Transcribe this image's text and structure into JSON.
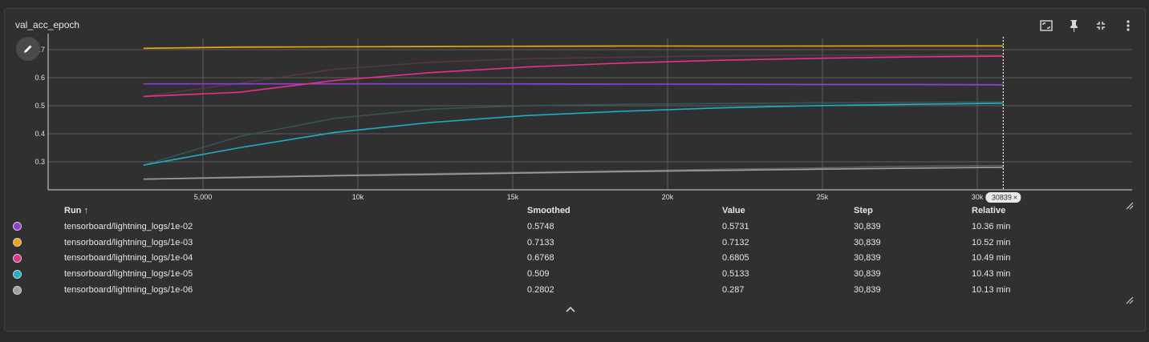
{
  "title": "val_acc_epoch",
  "toolbar": {
    "icons": [
      "fit-domain-icon",
      "pin-icon",
      "collapse-icon",
      "more-vert-icon"
    ]
  },
  "hover_step_label": "30839",
  "chart_data": {
    "type": "line",
    "xlim": [
      0,
      35000
    ],
    "ylim": [
      0.2,
      0.74
    ],
    "x_ticks": [
      5000,
      10000,
      15000,
      20000,
      25000,
      30000
    ],
    "x_tick_labels": [
      "5,000",
      "10k",
      "15k",
      "20k",
      "25k",
      "30k"
    ],
    "y_ticks": [
      0.3,
      0.4,
      0.5,
      0.6,
      0.7
    ],
    "y_tick_labels": [
      "0.3",
      "0.4",
      "0.5",
      "0.6",
      "0.7"
    ],
    "grid": true,
    "hover_step": 30839,
    "series": [
      {
        "name": "tensorboard/lightning_logs/1e-02",
        "color": "#8e3ed8",
        "raw_color": "#5a3a78",
        "x": [
          3080,
          6170,
          9250,
          12340,
          15420,
          18500,
          21590,
          24670,
          27760,
          30839
        ],
        "smoothed": [
          0.578,
          0.578,
          0.578,
          0.578,
          0.578,
          0.577,
          0.577,
          0.576,
          0.576,
          0.5748
        ],
        "values": [
          0.578,
          0.578,
          0.578,
          0.578,
          0.577,
          0.577,
          0.576,
          0.575,
          0.575,
          0.5731
        ]
      },
      {
        "name": "tensorboard/lightning_logs/1e-03",
        "color": "#f0a30a",
        "raw_color": "#7a6030",
        "x": [
          3080,
          6170,
          9250,
          12340,
          15420,
          18500,
          21590,
          24670,
          27760,
          30839
        ],
        "smoothed": [
          0.705,
          0.709,
          0.71,
          0.711,
          0.712,
          0.713,
          0.713,
          0.713,
          0.7133,
          0.7133
        ],
        "values": [
          0.705,
          0.711,
          0.711,
          0.712,
          0.713,
          0.714,
          0.712,
          0.713,
          0.713,
          0.7132
        ]
      },
      {
        "name": "tensorboard/lightning_logs/1e-04",
        "color": "#e8318a",
        "raw_color": "#5a3a48",
        "x": [
          3080,
          6170,
          9250,
          12340,
          15420,
          18500,
          21590,
          24670,
          27760,
          30839
        ],
        "smoothed": [
          0.533,
          0.548,
          0.59,
          0.618,
          0.638,
          0.652,
          0.662,
          0.669,
          0.674,
          0.6768
        ],
        "values": [
          0.533,
          0.58,
          0.63,
          0.655,
          0.668,
          0.673,
          0.678,
          0.68,
          0.681,
          0.6805
        ]
      },
      {
        "name": "tensorboard/lightning_logs/1e-05",
        "color": "#1bb0c6",
        "raw_color": "#3a5a5e",
        "x": [
          3080,
          6170,
          9250,
          12340,
          15420,
          18500,
          21590,
          24670,
          27760,
          30839
        ],
        "smoothed": [
          0.288,
          0.35,
          0.405,
          0.44,
          0.465,
          0.48,
          0.492,
          0.5,
          0.505,
          0.509
        ],
        "values": [
          0.288,
          0.39,
          0.455,
          0.488,
          0.5,
          0.505,
          0.508,
          0.51,
          0.512,
          0.5133
        ]
      },
      {
        "name": "tensorboard/lightning_logs/1e-06",
        "color": "#9aa0a6",
        "raw_color": "#62666a",
        "x": [
          3080,
          6170,
          9250,
          12340,
          15420,
          18500,
          21590,
          24670,
          27760,
          30839
        ],
        "smoothed": [
          0.238,
          0.244,
          0.25,
          0.255,
          0.26,
          0.265,
          0.269,
          0.273,
          0.277,
          0.2802
        ],
        "values": [
          0.238,
          0.246,
          0.252,
          0.258,
          0.263,
          0.268,
          0.273,
          0.278,
          0.284,
          0.287
        ]
      }
    ]
  },
  "table": {
    "headers": {
      "run": "Run ↑",
      "smoothed": "Smoothed",
      "value": "Value",
      "step": "Step",
      "relative": "Relative"
    },
    "rows": [
      {
        "color": "#8e3ed8",
        "run": "tensorboard/lightning_logs/1e-02",
        "smoothed": "0.5748",
        "value": "0.5731",
        "step": "30,839",
        "relative": "10.36 min"
      },
      {
        "color": "#f0a30a",
        "run": "tensorboard/lightning_logs/1e-03",
        "smoothed": "0.7133",
        "value": "0.7132",
        "step": "30,839",
        "relative": "10.52 min"
      },
      {
        "color": "#e8318a",
        "run": "tensorboard/lightning_logs/1e-04",
        "smoothed": "0.6768",
        "value": "0.6805",
        "step": "30,839",
        "relative": "10.49 min"
      },
      {
        "color": "#1bb0c6",
        "run": "tensorboard/lightning_logs/1e-05",
        "smoothed": "0.509",
        "value": "0.5133",
        "step": "30,839",
        "relative": "10.43 min"
      },
      {
        "color": "#9aa0a6",
        "run": "tensorboard/lightning_logs/1e-06",
        "smoothed": "0.2802",
        "value": "0.287",
        "step": "30,839",
        "relative": "10.13 min"
      }
    ]
  }
}
